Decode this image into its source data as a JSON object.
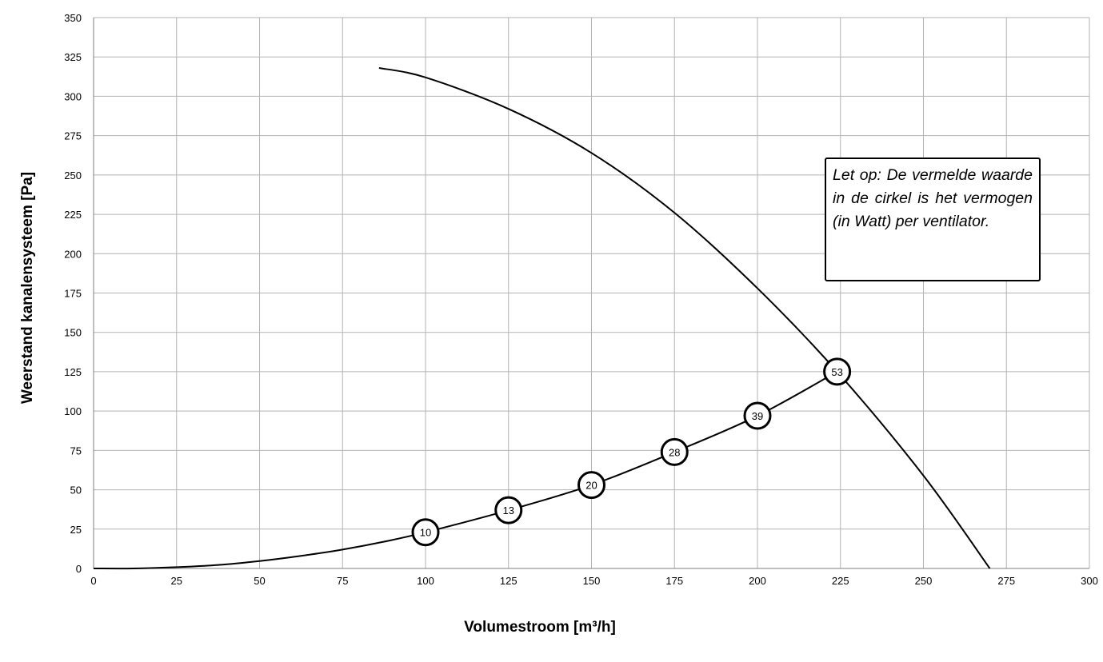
{
  "chart_data": {
    "type": "line",
    "xlabel": "Volumestroom [m³/h]",
    "ylabel": "Weerstand kanalensysteem [Pa]",
    "xlim": [
      0,
      300
    ],
    "ylim": [
      0,
      350
    ],
    "x_ticks": [
      0,
      25,
      50,
      75,
      100,
      125,
      150,
      175,
      200,
      225,
      250,
      275,
      300
    ],
    "y_ticks": [
      0,
      25,
      50,
      75,
      100,
      125,
      150,
      175,
      200,
      225,
      250,
      275,
      300,
      325,
      350
    ],
    "grid": true,
    "fan_curve": {
      "x": [
        86,
        100,
        125,
        150,
        175,
        200,
        224,
        250,
        270
      ],
      "y": [
        318,
        312,
        292,
        264,
        226,
        178,
        125,
        59,
        0
      ]
    },
    "system_curve": {
      "x": [
        0,
        12,
        25,
        37.5,
        50,
        62.5,
        75,
        87.5,
        100
      ],
      "y": [
        0,
        0,
        0.8,
        2.2,
        4.7,
        8,
        12,
        17,
        23
      ]
    },
    "markers": [
      {
        "x": 100,
        "y": 23,
        "label": "10"
      },
      {
        "x": 125,
        "y": 37,
        "label": "13"
      },
      {
        "x": 150,
        "y": 53,
        "label": "20"
      },
      {
        "x": 175,
        "y": 74,
        "label": "28"
      },
      {
        "x": 200,
        "y": 97,
        "label": "39"
      },
      {
        "x": 224,
        "y": 125,
        "label": "53"
      }
    ],
    "annotation": "Let op: De vermelde waarde in de cirkel is het vermogen (in Watt) per ventilator."
  }
}
